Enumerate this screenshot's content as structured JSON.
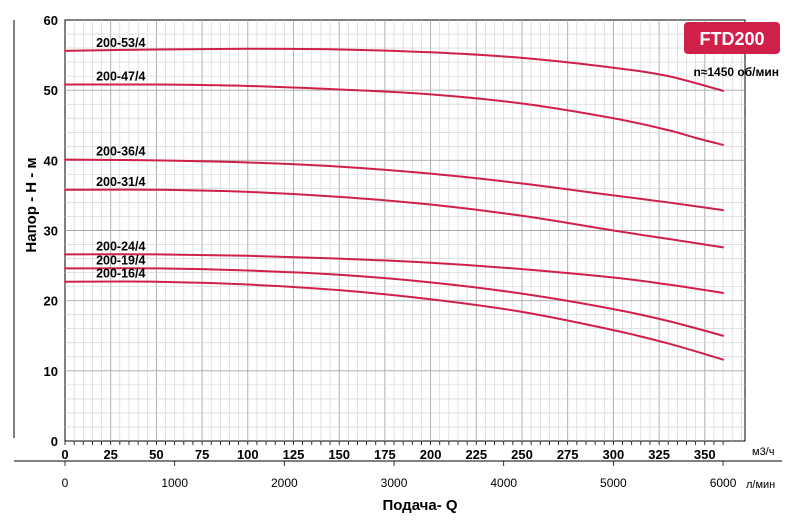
{
  "chart_data": {
    "type": "line",
    "badge": "FTD200",
    "speed_note": "n≈1450 об/мин",
    "ylabel": "Напор - H - м",
    "xlabel": "Подача- Q",
    "x_unit_primary": "м3/ч",
    "x_unit_secondary": "л/мин",
    "ylim": [
      0,
      60
    ],
    "xlim": [
      0,
      372
    ],
    "y_ticks": [
      "0",
      "10",
      "20",
      "30",
      "40",
      "50",
      "60"
    ],
    "x_ticks": [
      "0",
      "25",
      "50",
      "75",
      "100",
      "125",
      "150",
      "175",
      "200",
      "225",
      "250",
      "275",
      "300",
      "325",
      "350"
    ],
    "x_ticks_secondary": [
      {
        "value": 0,
        "label": "0"
      },
      {
        "value": 60,
        "label": "1000"
      },
      {
        "value": 120,
        "label": "2000"
      },
      {
        "value": 180,
        "label": "3000"
      },
      {
        "value": 240,
        "label": "4000"
      },
      {
        "value": 300,
        "label": "5000"
      },
      {
        "value": 360,
        "label": "6000"
      }
    ],
    "grid": true,
    "color": "#d0204a",
    "series": [
      {
        "name": "200-53/4",
        "x": [
          0,
          50,
          100,
          150,
          200,
          250,
          300,
          330,
          360
        ],
        "y": [
          55.6,
          55.8,
          55.9,
          55.8,
          55.4,
          54.6,
          53.2,
          52.0,
          49.9
        ]
      },
      {
        "name": "200-47/4",
        "x": [
          0,
          50,
          100,
          150,
          200,
          250,
          300,
          330,
          345,
          360
        ],
        "y": [
          50.8,
          50.8,
          50.6,
          50.1,
          49.4,
          48.1,
          46.0,
          44.3,
          43.2,
          42.2
        ]
      },
      {
        "name": "200-36/4",
        "x": [
          0,
          50,
          100,
          150,
          200,
          250,
          300,
          330,
          360
        ],
        "y": [
          40.1,
          40.0,
          39.7,
          39.1,
          38.1,
          36.7,
          35.0,
          34.0,
          32.9
        ]
      },
      {
        "name": "200-31/4",
        "x": [
          0,
          50,
          100,
          150,
          200,
          250,
          300,
          330,
          360
        ],
        "y": [
          35.8,
          35.8,
          35.5,
          34.8,
          33.7,
          32.1,
          30.0,
          28.8,
          27.6
        ]
      },
      {
        "name": "200-24/4",
        "x": [
          0,
          50,
          100,
          150,
          200,
          250,
          300,
          330,
          360
        ],
        "y": [
          26.6,
          26.6,
          26.4,
          26.0,
          25.4,
          24.5,
          23.3,
          22.3,
          21.1
        ]
      },
      {
        "name": "200-19/4",
        "x": [
          0,
          50,
          100,
          150,
          200,
          250,
          300,
          330,
          360
        ],
        "y": [
          24.6,
          24.6,
          24.3,
          23.7,
          22.6,
          21.0,
          18.8,
          17.1,
          15.0
        ]
      },
      {
        "name": "200-16/4",
        "x": [
          0,
          50,
          100,
          150,
          200,
          250,
          300,
          330,
          360
        ],
        "y": [
          22.7,
          22.7,
          22.3,
          21.5,
          20.2,
          18.4,
          15.8,
          13.9,
          11.6
        ]
      }
    ]
  }
}
